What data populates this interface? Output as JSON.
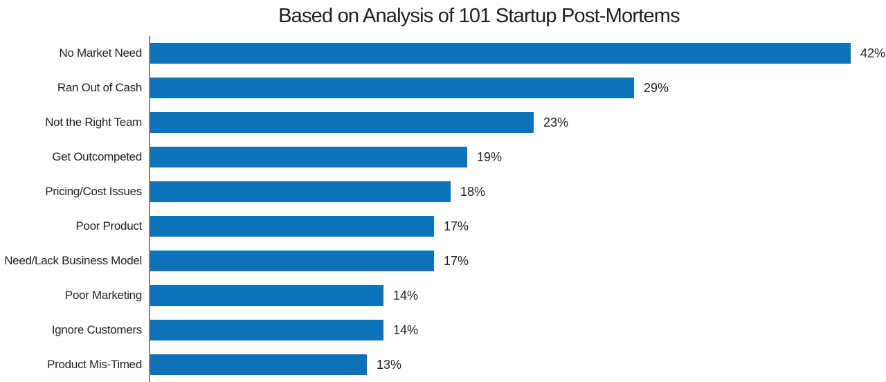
{
  "chart_data": {
    "type": "bar",
    "orientation": "horizontal",
    "title": "Based on Analysis of 101 Startup Post-Mortems",
    "categories": [
      "No Market Need",
      "Ran Out of Cash",
      "Not the Right Team",
      "Get Outcompeted",
      "Pricing/Cost Issues",
      "Poor Product",
      "Need/Lack Business Model",
      "Poor Marketing",
      "Ignore Customers",
      "Product Mis-Timed"
    ],
    "values": [
      42,
      29,
      23,
      19,
      18,
      17,
      17,
      14,
      14,
      13
    ],
    "value_labels": [
      "42%",
      "29%",
      "23%",
      "19%",
      "18%",
      "17%",
      "17%",
      "14%",
      "14%",
      "13%"
    ],
    "xlabel": "",
    "ylabel": "",
    "xlim": [
      0,
      44
    ],
    "grid": false,
    "legend": false,
    "value_labels_position": "end-of-bar",
    "bar_color": "#0c73ba",
    "axis_color": "#82828e",
    "text_color": "#231f20",
    "background_color": "#ffffff"
  }
}
